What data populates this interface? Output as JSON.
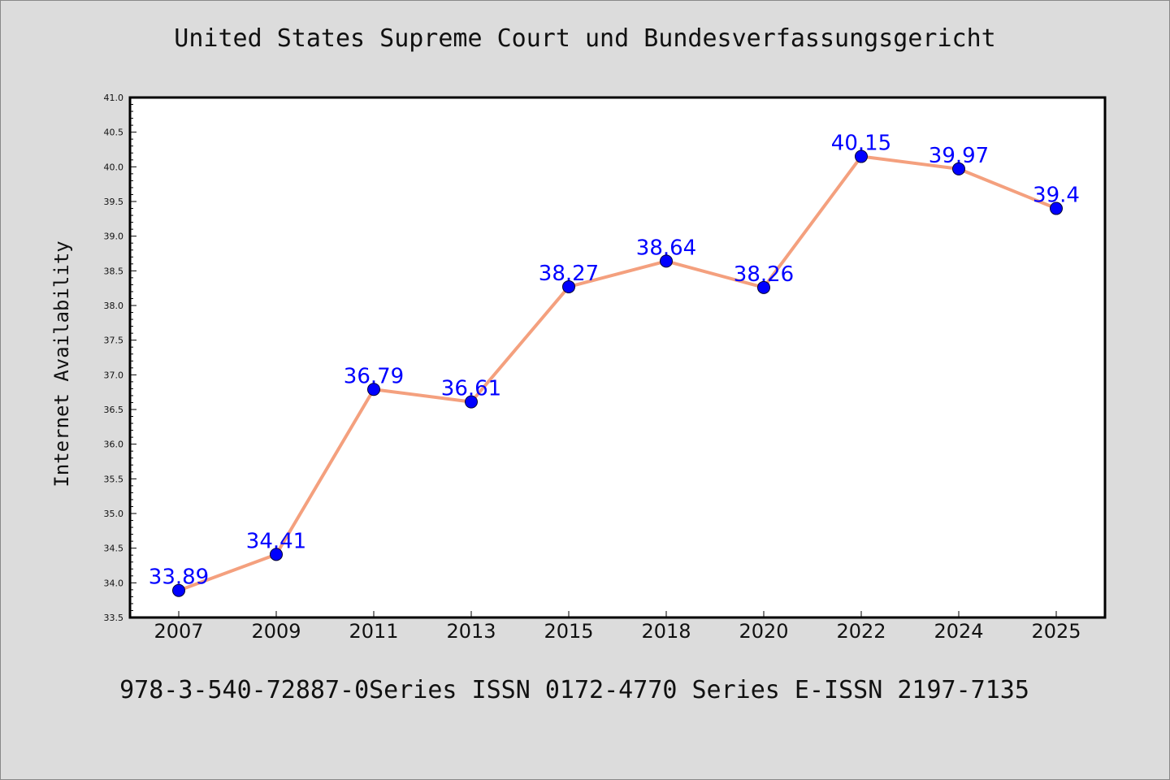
{
  "caption": "978-3-540-72887-0Series ISSN 0172-4770 Series E-ISSN 2197-7135",
  "colors": {
    "background": "#dcdcdc",
    "plot_background": "#ffffff",
    "line": "#f4a07e",
    "marker": "#0000ff",
    "label": "#0000ff"
  },
  "chart_data": {
    "type": "line",
    "title": "United States Supreme Court und Bundesverfassungsgericht",
    "xlabel": "",
    "ylabel": "Internet Availability",
    "categories": [
      "2007",
      "2009",
      "2011",
      "2013",
      "2015",
      "2018",
      "2020",
      "2022",
      "2024",
      "2025"
    ],
    "series": [
      {
        "values": [
          33.89,
          34.41,
          36.79,
          36.61,
          38.27,
          38.64,
          38.26,
          40.15,
          39.97,
          39.4
        ],
        "labels": [
          "33.89",
          "34.41",
          "36.79",
          "36.61",
          "38.27",
          "38.64",
          "38.26",
          "40.15",
          "39.97",
          "39.4"
        ]
      }
    ],
    "ylim": [
      33.5,
      41.0
    ],
    "yticks": [
      "33.5",
      "34.0",
      "34.5",
      "35.0",
      "35.5",
      "36.0",
      "36.5",
      "37.0",
      "37.5",
      "38.0",
      "38.5",
      "39.0",
      "39.5",
      "40.0",
      "40.5",
      "41.0"
    ],
    "grid": false,
    "legend": "none"
  }
}
